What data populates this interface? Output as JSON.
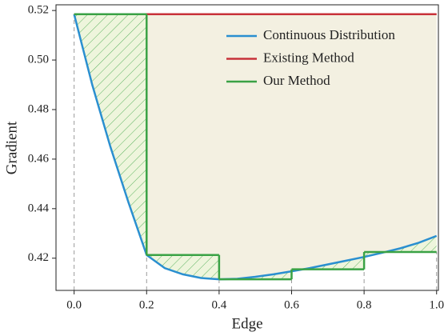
{
  "chart_data": {
    "type": "line",
    "x_label": "Edge",
    "y_label": "Gradient",
    "xlim": [
      -0.05,
      1.005
    ],
    "ylim": [
      0.407,
      0.5223
    ],
    "xticks": [
      {
        "value": 0,
        "label": "0.0"
      },
      0.2,
      0.4,
      0.6,
      0.8,
      {
        "value": 1,
        "label": "1.0"
      }
    ],
    "yticks": [
      0.42,
      0.44,
      0.46,
      0.48,
      {
        "value": 0.5,
        "label": "0.50"
      },
      0.52
    ],
    "legend": "upper right",
    "series": [
      {
        "name": "Continuous Distribution",
        "color": "#2a8fd0",
        "style": "line",
        "x": [
          0,
          0.05,
          0.1,
          0.15,
          0.2,
          0.25,
          0.3,
          0.35,
          0.4,
          0.45,
          0.5,
          0.55,
          0.6,
          0.65,
          0.7,
          0.75,
          0.8,
          0.85,
          0.9,
          0.95,
          1.0
        ],
        "values": [
          0.5185,
          0.49,
          0.465,
          0.4425,
          0.4213,
          0.416,
          0.4135,
          0.412,
          0.4115,
          0.4117,
          0.4125,
          0.4135,
          0.4147,
          0.416,
          0.4175,
          0.419,
          0.4205,
          0.4222,
          0.424,
          0.4262,
          0.429
        ]
      },
      {
        "name": "Existing Method",
        "color": "#c8323a",
        "style": "line",
        "x": [
          0,
          1.0
        ],
        "values": [
          0.5185,
          0.5185
        ]
      },
      {
        "name": "Our Method",
        "color": "#3aa245",
        "style": "step",
        "x": [
          0,
          0.2,
          0.4,
          0.6,
          0.8,
          1.0
        ],
        "values": [
          0.5185,
          0.4213,
          0.4115,
          0.4155,
          0.4225,
          0.4225
        ]
      }
    ]
  }
}
